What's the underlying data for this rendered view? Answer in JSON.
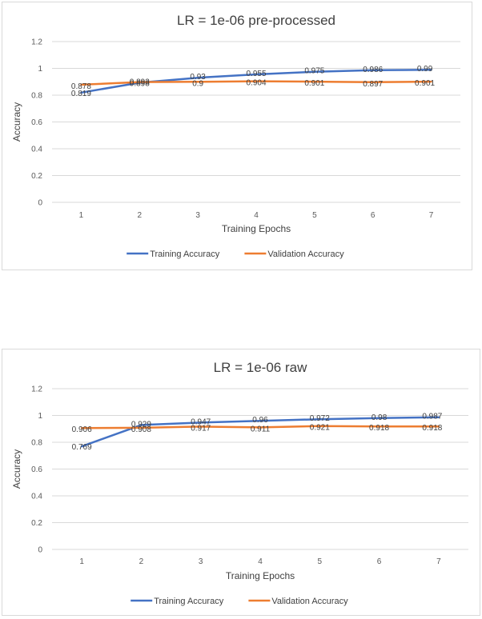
{
  "chart_data": [
    {
      "type": "line",
      "title": "LR = 1e-06 pre-processed",
      "xlabel": "Training Epochs",
      "ylabel": "Accuracy",
      "categories": [
        "1",
        "2",
        "3",
        "4",
        "5",
        "6",
        "7"
      ],
      "ylim": [
        0,
        1.2
      ],
      "yticks": [
        "0",
        "0.2",
        "0.4",
        "0.6",
        "0.8",
        "1",
        "1.2"
      ],
      "grid": true,
      "legend": "bottom",
      "series": [
        {
          "name": "Training Accuracy",
          "color": "#4472c4",
          "values": [
            0.819,
            0.893,
            0.93,
            0.955,
            0.975,
            0.986,
            0.99
          ],
          "labels": [
            "0.819",
            "0.893",
            "0.93",
            "0.955",
            "0.975",
            "0.986",
            "0.99"
          ]
        },
        {
          "name": "Validation Accuracy",
          "color": "#ed7d31",
          "values": [
            0.878,
            0.898,
            0.9,
            0.904,
            0.901,
            0.897,
            0.901
          ],
          "labels": [
            "0.878",
            "0.898",
            "0.9",
            "0.904",
            "0.901",
            "0.897",
            "0.901"
          ]
        }
      ]
    },
    {
      "type": "line",
      "title": "LR = 1e-06 raw",
      "xlabel": "Training Epochs",
      "ylabel": "Accuracy",
      "categories": [
        "1",
        "2",
        "3",
        "4",
        "5",
        "6",
        "7"
      ],
      "ylim": [
        0,
        1.2
      ],
      "yticks": [
        "0",
        "0.2",
        "0.4",
        "0.6",
        "0.8",
        "1",
        "1.2"
      ],
      "grid": true,
      "legend": "bottom",
      "series": [
        {
          "name": "Training Accuracy",
          "color": "#4472c4",
          "values": [
            0.769,
            0.929,
            0.947,
            0.96,
            0.972,
            0.98,
            0.987
          ],
          "labels": [
            "0.769",
            "0.929",
            "0.947",
            "0.96",
            "0.972",
            "0.98",
            "0.987"
          ]
        },
        {
          "name": "Validation Accuracy",
          "color": "#ed7d31",
          "values": [
            0.906,
            0.908,
            0.917,
            0.911,
            0.921,
            0.918,
            0.918
          ],
          "labels": [
            "0.906",
            "0.908",
            "0.917",
            "0.911",
            "0.921",
            "0.918",
            "0.918"
          ]
        }
      ]
    }
  ]
}
